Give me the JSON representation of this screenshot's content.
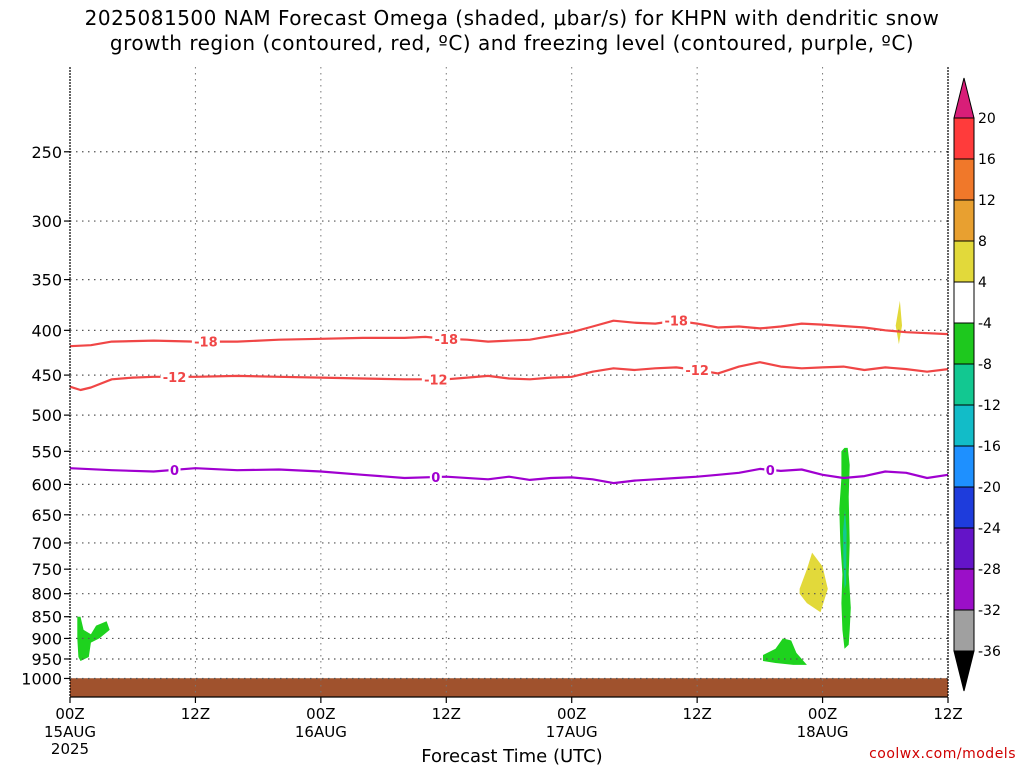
{
  "title": {
    "line1": "2025081500 NAM Forecast Omega (shaded, μbar/s) for KHPN with dendritic snow",
    "line2": "growth region (contoured, red, ºC) and freezing level (contoured, purple, ºC)"
  },
  "xlabel": "Forecast Time (UTC)",
  "credit": "coolwx.com/models",
  "chart_data": {
    "type": "time-height cross section",
    "x_unit": "hours since 2025-08-15 00Z",
    "xlim": [
      0,
      84
    ],
    "y_scale": "log-pressure (inverted)",
    "ylim_hPa": [
      1050,
      200
    ],
    "y_ticks": [
      250,
      300,
      350,
      400,
      450,
      500,
      550,
      600,
      650,
      700,
      750,
      800,
      850,
      900,
      950,
      1000
    ],
    "x_ticks": [
      {
        "t": 0,
        "label": "00Z",
        "sub": "15AUG",
        "sub2": "2025"
      },
      {
        "t": 12,
        "label": "12Z",
        "sub": "",
        "sub2": ""
      },
      {
        "t": 24,
        "label": "00Z",
        "sub": "16AUG",
        "sub2": ""
      },
      {
        "t": 36,
        "label": "12Z",
        "sub": "",
        "sub2": ""
      },
      {
        "t": 48,
        "label": "00Z",
        "sub": "17AUG",
        "sub2": ""
      },
      {
        "t": 60,
        "label": "12Z",
        "sub": "",
        "sub2": ""
      },
      {
        "t": 72,
        "label": "00Z",
        "sub": "18AUG",
        "sub2": ""
      },
      {
        "t": 84,
        "label": "12Z",
        "sub": "",
        "sub2": ""
      }
    ],
    "grid": true,
    "colorbar": {
      "labels": [
        "20",
        "16",
        "12",
        "8",
        "4",
        "-4",
        "-8",
        "-12",
        "-16",
        "-20",
        "-24",
        "-28",
        "-32",
        "-36"
      ],
      "colors": [
        "#ff3b3b",
        "#f0782a",
        "#e8a030",
        "#e2d93a",
        "#ffffff",
        "#1ec81e",
        "#12c891",
        "#12bcc8",
        "#1e90ff",
        "#1e3cdc",
        "#6414c8",
        "#9b0fc8",
        "#a0a0a0"
      ],
      "top_arrow_color": "#d81e78",
      "bottom_arrow_color": "#000000"
    },
    "contours": [
      {
        "label": "-18",
        "color": "#f04646",
        "points": [
          [
            0,
            417
          ],
          [
            2,
            416
          ],
          [
            4,
            412
          ],
          [
            8,
            411
          ],
          [
            12,
            412
          ],
          [
            16,
            412
          ],
          [
            20,
            410
          ],
          [
            24,
            409
          ],
          [
            28,
            408
          ],
          [
            32,
            408
          ],
          [
            34,
            407
          ],
          [
            36,
            409
          ],
          [
            38,
            410
          ],
          [
            40,
            412
          ],
          [
            44,
            410
          ],
          [
            46,
            406
          ],
          [
            48,
            402
          ],
          [
            50,
            396
          ],
          [
            52,
            390
          ],
          [
            54,
            392
          ],
          [
            56,
            393
          ],
          [
            58,
            390
          ],
          [
            60,
            393
          ],
          [
            62,
            397
          ],
          [
            64,
            396
          ],
          [
            66,
            398
          ],
          [
            68,
            396
          ],
          [
            70,
            393
          ],
          [
            72,
            394
          ],
          [
            76,
            397
          ],
          [
            78,
            400
          ],
          [
            80,
            402
          ],
          [
            84,
            404
          ]
        ],
        "labels_at": [
          13,
          36,
          58
        ]
      },
      {
        "label": "-12",
        "color": "#f04646",
        "points": [
          [
            0,
            464
          ],
          [
            1,
            468
          ],
          [
            2,
            465
          ],
          [
            4,
            455
          ],
          [
            6,
            453
          ],
          [
            8,
            452
          ],
          [
            12,
            452
          ],
          [
            16,
            451
          ],
          [
            20,
            452
          ],
          [
            24,
            453
          ],
          [
            28,
            454
          ],
          [
            32,
            455
          ],
          [
            36,
            455
          ],
          [
            38,
            453
          ],
          [
            40,
            451
          ],
          [
            42,
            454
          ],
          [
            44,
            455
          ],
          [
            46,
            453
          ],
          [
            48,
            452
          ],
          [
            50,
            446
          ],
          [
            52,
            442
          ],
          [
            54,
            444
          ],
          [
            56,
            442
          ],
          [
            58,
            441
          ],
          [
            60,
            444
          ],
          [
            62,
            448
          ],
          [
            64,
            440
          ],
          [
            66,
            435
          ],
          [
            68,
            440
          ],
          [
            70,
            442
          ],
          [
            72,
            441
          ],
          [
            74,
            440
          ],
          [
            76,
            444
          ],
          [
            78,
            441
          ],
          [
            80,
            443
          ],
          [
            82,
            446
          ],
          [
            84,
            443
          ]
        ],
        "labels_at": [
          10,
          35,
          60
        ]
      },
      {
        "label": "0",
        "color": "#a000d0",
        "points": [
          [
            0,
            575
          ],
          [
            4,
            578
          ],
          [
            8,
            580
          ],
          [
            12,
            575
          ],
          [
            16,
            578
          ],
          [
            20,
            577
          ],
          [
            24,
            580
          ],
          [
            28,
            585
          ],
          [
            32,
            590
          ],
          [
            36,
            588
          ],
          [
            40,
            592
          ],
          [
            42,
            588
          ],
          [
            44,
            593
          ],
          [
            46,
            590
          ],
          [
            48,
            589
          ],
          [
            50,
            592
          ],
          [
            52,
            598
          ],
          [
            54,
            594
          ],
          [
            56,
            592
          ],
          [
            58,
            590
          ],
          [
            60,
            588
          ],
          [
            62,
            585
          ],
          [
            64,
            582
          ],
          [
            66,
            576
          ],
          [
            68,
            579
          ],
          [
            70,
            577
          ],
          [
            72,
            585
          ],
          [
            74,
            590
          ],
          [
            76,
            587
          ],
          [
            78,
            580
          ],
          [
            80,
            582
          ],
          [
            82,
            590
          ],
          [
            84,
            585
          ]
        ],
        "labels_at": [
          10,
          35,
          67
        ]
      }
    ],
    "shaded_regions": [
      {
        "color": "#1ed21e",
        "points": [
          [
            0.7,
            850
          ],
          [
            1.0,
            850
          ],
          [
            1.3,
            880
          ],
          [
            2.0,
            890
          ],
          [
            2.5,
            870
          ],
          [
            3.5,
            860
          ],
          [
            3.8,
            880
          ],
          [
            2.8,
            900
          ],
          [
            2.0,
            910
          ],
          [
            1.8,
            945
          ],
          [
            1.0,
            955
          ],
          [
            0.8,
            945
          ],
          [
            0.7,
            900
          ]
        ]
      },
      {
        "color": "#1ed21e",
        "points": [
          [
            66.3,
            940
          ],
          [
            67.5,
            925
          ],
          [
            68.2,
            900
          ],
          [
            69.0,
            905
          ],
          [
            69.5,
            935
          ],
          [
            70.5,
            965
          ],
          [
            69.2,
            965
          ],
          [
            67.5,
            960
          ],
          [
            66.3,
            955
          ]
        ]
      },
      {
        "color": "#e2d93a",
        "points": [
          [
            69.8,
            790
          ],
          [
            70.5,
            750
          ],
          [
            71.0,
            718
          ],
          [
            72.0,
            745
          ],
          [
            72.5,
            790
          ],
          [
            71.8,
            840
          ],
          [
            70.5,
            820
          ],
          [
            69.8,
            800
          ]
        ]
      },
      {
        "color": "#e2d93a",
        "points": [
          [
            79.0,
            395
          ],
          [
            79.4,
            370
          ],
          [
            79.6,
            395
          ],
          [
            79.3,
            415
          ]
        ]
      },
      {
        "color": "#1ed21e",
        "points": [
          [
            73.8,
            550
          ],
          [
            74.1,
            545
          ],
          [
            74.4,
            545
          ],
          [
            74.6,
            570
          ],
          [
            74.5,
            620
          ],
          [
            74.6,
            700
          ],
          [
            74.5,
            760
          ],
          [
            74.7,
            830
          ],
          [
            74.6,
            880
          ],
          [
            74.5,
            915
          ],
          [
            74.1,
            925
          ],
          [
            73.9,
            880
          ],
          [
            73.8,
            820
          ],
          [
            73.9,
            760
          ],
          [
            73.7,
            700
          ],
          [
            73.6,
            640
          ],
          [
            73.8,
            590
          ]
        ]
      },
      {
        "color": "#12c891",
        "points": [
          [
            73.95,
            680
          ],
          [
            74.15,
            640
          ],
          [
            74.3,
            680
          ],
          [
            74.25,
            780
          ],
          [
            74.1,
            790
          ],
          [
            74.0,
            740
          ]
        ]
      }
    ],
    "terrain": {
      "color": "#a0522d",
      "pressure_hPa": 1010
    }
  }
}
